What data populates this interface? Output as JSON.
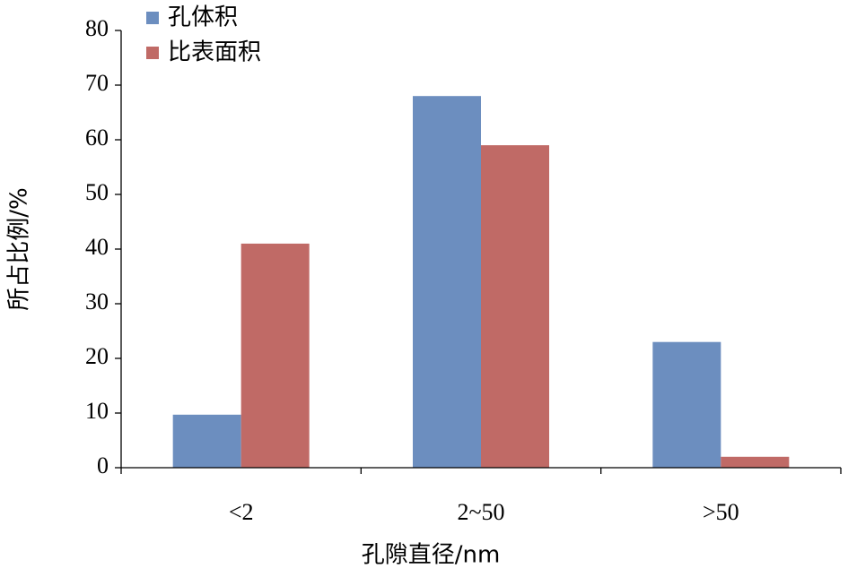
{
  "chart_data": {
    "type": "bar",
    "categories": [
      "<2",
      "2~50",
      ">50"
    ],
    "series": [
      {
        "name": "孔体积",
        "color": "#6c8ebf",
        "values": [
          9.7,
          68,
          23
        ]
      },
      {
        "name": "比表面积",
        "color": "#c06a66",
        "values": [
          41,
          59,
          2
        ]
      }
    ],
    "ylim": [
      0,
      80
    ],
    "yticks": [
      0,
      10,
      20,
      30,
      40,
      50,
      60,
      70,
      80
    ],
    "y_label": "所占比例/%",
    "x_label": "孔隙直径/nm",
    "grid": false,
    "legend": "top-left"
  }
}
